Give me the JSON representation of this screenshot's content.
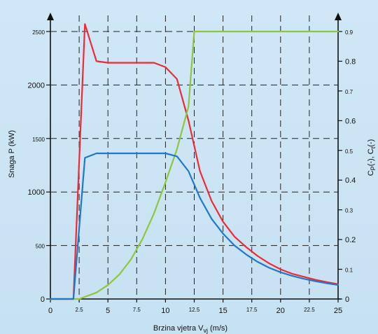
{
  "chart_data": {
    "type": "line",
    "title": "",
    "xlabel": "Brzina vjetra V",
    "xlabel_sub": "vj",
    "xlabel_unit": " (m/s)",
    "ylabel_left": "Snaga P (kW)",
    "ylabel_right": {
      "p1": "C",
      "s1": "P",
      "p2": "(-), C",
      "s2": "t",
      "p3": "(-)"
    },
    "xlim": [
      0,
      25
    ],
    "ylim_left": [
      0,
      2500
    ],
    "ylim_right": [
      0,
      0.9
    ],
    "grid": true,
    "x_ticks": [
      {
        "v": 0,
        "t": "0",
        "size": "big"
      },
      {
        "v": 2.5,
        "t": "2.5",
        "size": "small"
      },
      {
        "v": 5,
        "t": "5",
        "size": "big"
      },
      {
        "v": 7.5,
        "t": "7.5",
        "size": "small"
      },
      {
        "v": 10,
        "t": "10",
        "size": "big"
      },
      {
        "v": 12.5,
        "t": "12.5",
        "size": "small"
      },
      {
        "v": 15,
        "t": "15",
        "size": "big"
      },
      {
        "v": 17.5,
        "t": "17.5",
        "size": "small"
      },
      {
        "v": 20,
        "t": "20",
        "size": "big"
      },
      {
        "v": 22.5,
        "t": "22.5",
        "size": "small"
      },
      {
        "v": 25,
        "t": "25",
        "size": "big"
      }
    ],
    "y_left_ticks": [
      {
        "v": 0,
        "t": "0",
        "size": "big"
      },
      {
        "v": 500,
        "t": "500",
        "size": "small"
      },
      {
        "v": 1000,
        "t": "1000",
        "size": "big"
      },
      {
        "v": 1500,
        "t": "1500",
        "size": "small"
      },
      {
        "v": 2000,
        "t": "2000",
        "size": "big"
      },
      {
        "v": 2500,
        "t": "2500",
        "size": "small"
      }
    ],
    "y_right_ticks": [
      {
        "v": 0,
        "t": "0",
        "size": "big"
      },
      {
        "v": 0.1,
        "t": "0.1",
        "size": "small"
      },
      {
        "v": 0.2,
        "t": "0.2",
        "size": "big"
      },
      {
        "v": 0.3,
        "t": "0.3",
        "size": "small"
      },
      {
        "v": 0.4,
        "t": "0.4",
        "size": "big"
      },
      {
        "v": 0.5,
        "t": "0.5",
        "size": "small"
      },
      {
        "v": 0.6,
        "t": "0.6",
        "size": "big"
      },
      {
        "v": 0.7,
        "t": "0.7",
        "size": "small"
      },
      {
        "v": 0.8,
        "t": "0.8",
        "size": "big"
      },
      {
        "v": 0.9,
        "t": "0.9",
        "size": "small"
      }
    ],
    "series": [
      {
        "color": "#ee2a35",
        "axis": "right",
        "x": [
          0,
          2,
          3,
          4,
          5,
          6,
          7,
          8,
          9,
          10,
          11,
          12,
          13,
          14,
          15,
          16,
          17,
          18,
          19,
          20,
          21,
          22,
          23,
          24,
          25
        ],
        "y": [
          0,
          0,
          0.925,
          0.8,
          0.795,
          0.795,
          0.795,
          0.795,
          0.795,
          0.78,
          0.74,
          0.6,
          0.43,
          0.33,
          0.26,
          0.21,
          0.175,
          0.145,
          0.12,
          0.1,
          0.085,
          0.075,
          0.065,
          0.057,
          0.05
        ]
      },
      {
        "color": "#8dc63f",
        "axis": "left",
        "x": [
          0,
          2,
          2.5,
          3,
          4,
          5,
          6,
          7,
          8,
          9,
          10,
          11,
          12,
          12.5,
          13,
          15,
          20,
          25
        ],
        "y": [
          0,
          0,
          0,
          20,
          60,
          130,
          230,
          370,
          560,
          800,
          1090,
          1400,
          1800,
          2500,
          2500,
          2500,
          2500,
          2500
        ]
      },
      {
        "color": "#1f78c8",
        "axis": "right",
        "x": [
          0,
          2,
          3,
          4,
          5,
          6,
          7,
          8,
          9,
          10,
          11,
          12,
          13,
          14,
          15,
          16,
          17,
          18,
          19,
          20,
          21,
          22,
          23,
          24,
          25
        ],
        "y": [
          0,
          0,
          0.475,
          0.49,
          0.49,
          0.49,
          0.49,
          0.49,
          0.49,
          0.49,
          0.48,
          0.43,
          0.34,
          0.27,
          0.22,
          0.18,
          0.15,
          0.125,
          0.105,
          0.09,
          0.078,
          0.068,
          0.06,
          0.053,
          0.047
        ]
      }
    ]
  }
}
